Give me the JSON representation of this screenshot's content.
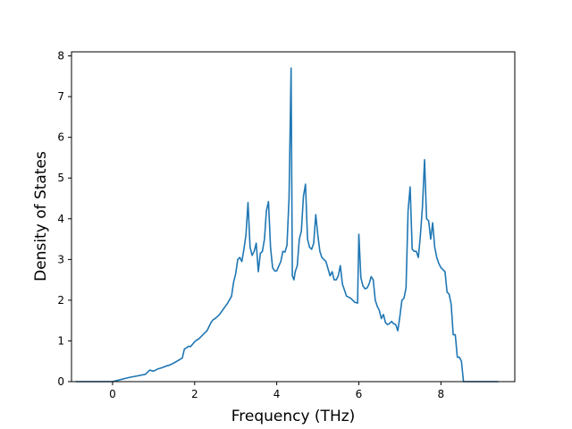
{
  "chart_data": {
    "type": "line",
    "xlabel": "Frequency (THz)",
    "ylabel": "Density of States",
    "xlim": [
      -1.0,
      9.8
    ],
    "ylim": [
      0,
      8.1
    ],
    "xticks": [
      0,
      2,
      4,
      6,
      8
    ],
    "xtick_labels": [
      "0",
      "2",
      "4",
      "6",
      "8"
    ],
    "yticks": [
      0,
      1,
      2,
      3,
      4,
      5,
      6,
      7,
      8
    ],
    "ytick_labels": [
      "0",
      "1",
      "2",
      "3",
      "4",
      "5",
      "6",
      "7",
      "8"
    ],
    "grid": false,
    "line_color": "#1f77b4",
    "series": [
      {
        "x": [
          -0.9,
          -0.5,
          0.0,
          0.2,
          0.4,
          0.6,
          0.8,
          0.9,
          1.0,
          1.1,
          1.2,
          1.3,
          1.4,
          1.5,
          1.6,
          1.7,
          1.75,
          1.8,
          1.85,
          1.9,
          2.0,
          2.05,
          2.1,
          2.2,
          2.3,
          2.4,
          2.45,
          2.5,
          2.6,
          2.7,
          2.8,
          2.9,
          2.95,
          3.0,
          3.05,
          3.1,
          3.15,
          3.2,
          3.25,
          3.3,
          3.35,
          3.4,
          3.45,
          3.5,
          3.55,
          3.6,
          3.65,
          3.7,
          3.75,
          3.8,
          3.85,
          3.9,
          3.95,
          4.0,
          4.1,
          4.15,
          4.2,
          4.25,
          4.3,
          4.35,
          4.38,
          4.42,
          4.45,
          4.5,
          4.55,
          4.6,
          4.65,
          4.7,
          4.75,
          4.8,
          4.85,
          4.9,
          4.95,
          5.0,
          5.05,
          5.1,
          5.15,
          5.2,
          5.3,
          5.35,
          5.4,
          5.45,
          5.5,
          5.55,
          5.6,
          5.65,
          5.7,
          5.8,
          5.9,
          5.97,
          6.0,
          6.05,
          6.1,
          6.15,
          6.2,
          6.25,
          6.3,
          6.35,
          6.4,
          6.45,
          6.5,
          6.55,
          6.6,
          6.65,
          6.7,
          6.75,
          6.8,
          6.85,
          6.9,
          6.95,
          7.0,
          7.05,
          7.1,
          7.15,
          7.2,
          7.25,
          7.3,
          7.35,
          7.4,
          7.45,
          7.5,
          7.55,
          7.6,
          7.65,
          7.7,
          7.75,
          7.8,
          7.85,
          7.9,
          7.95,
          8.0,
          8.1,
          8.15,
          8.2,
          8.25,
          8.3,
          8.35,
          8.4,
          8.45,
          8.5,
          8.55,
          8.6,
          9.0,
          9.4
        ],
        "y": [
          0.0,
          0.0,
          0.0,
          0.05,
          0.1,
          0.14,
          0.18,
          0.28,
          0.26,
          0.31,
          0.34,
          0.38,
          0.41,
          0.46,
          0.52,
          0.58,
          0.8,
          0.83,
          0.87,
          0.86,
          0.98,
          1.02,
          1.05,
          1.15,
          1.25,
          1.45,
          1.52,
          1.55,
          1.64,
          1.78,
          1.92,
          2.1,
          2.45,
          2.65,
          3.0,
          3.05,
          2.95,
          3.25,
          3.6,
          4.4,
          3.3,
          3.1,
          3.2,
          3.4,
          2.7,
          3.15,
          3.2,
          3.5,
          4.2,
          4.42,
          3.3,
          2.8,
          2.72,
          2.72,
          2.95,
          3.2,
          3.18,
          3.35,
          4.5,
          7.7,
          2.6,
          2.5,
          2.7,
          2.85,
          3.5,
          3.7,
          4.55,
          4.85,
          3.5,
          3.3,
          3.25,
          3.4,
          4.1,
          3.6,
          3.2,
          3.05,
          3.0,
          2.95,
          2.6,
          2.7,
          2.5,
          2.5,
          2.6,
          2.85,
          2.4,
          2.25,
          2.1,
          2.05,
          1.95,
          1.93,
          3.62,
          2.55,
          2.35,
          2.28,
          2.3,
          2.4,
          2.58,
          2.5,
          2.0,
          1.85,
          1.75,
          1.55,
          1.65,
          1.45,
          1.4,
          1.43,
          1.48,
          1.42,
          1.4,
          1.25,
          1.6,
          2.0,
          2.05,
          2.3,
          4.2,
          4.78,
          3.25,
          3.2,
          3.2,
          3.05,
          3.6,
          4.3,
          5.45,
          4.0,
          3.95,
          3.5,
          3.9,
          3.3,
          3.05,
          2.9,
          2.8,
          2.7,
          2.2,
          2.15,
          1.9,
          1.15,
          1.15,
          0.6,
          0.6,
          0.5,
          0.0,
          0.0,
          0.0,
          0.0
        ]
      }
    ]
  }
}
